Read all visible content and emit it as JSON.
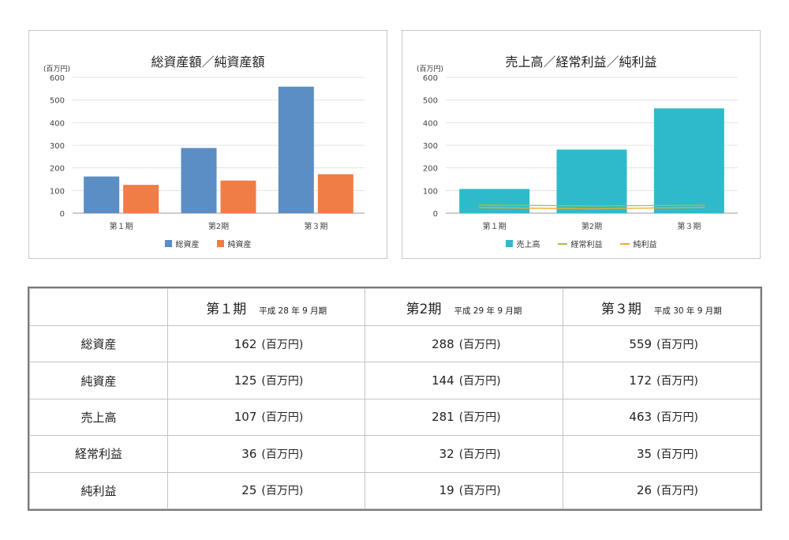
{
  "chart_data": [
    {
      "type": "bar",
      "title": "総資産額／純資産額",
      "unit_label": "(百万円)",
      "categories": [
        "第１期",
        "第2期",
        "第３期"
      ],
      "ylim": [
        0,
        600
      ],
      "yticks": [
        0,
        100,
        200,
        300,
        400,
        500,
        600
      ],
      "grid": true,
      "legend_position": "bottom",
      "series": [
        {
          "name": "総資産",
          "type": "bar",
          "color": "#5b8ec4",
          "values": [
            162,
            288,
            559
          ]
        },
        {
          "name": "純資産",
          "type": "bar",
          "color": "#ef7d45",
          "values": [
            125,
            144,
            172
          ]
        }
      ]
    },
    {
      "type": "bar",
      "title": "売上高／経常利益／純利益",
      "unit_label": "(百万円)",
      "categories": [
        "第１期",
        "第2期",
        "第３期"
      ],
      "ylim": [
        0,
        600
      ],
      "yticks": [
        0,
        100,
        200,
        300,
        400,
        500,
        600
      ],
      "grid": true,
      "legend_position": "bottom",
      "series": [
        {
          "name": "売上高",
          "type": "bar",
          "color": "#2ebacb",
          "values": [
            107,
            281,
            463
          ]
        },
        {
          "name": "経常利益",
          "type": "line",
          "color": "#9cc53f",
          "values": [
            36,
            32,
            35
          ]
        },
        {
          "name": "純利益",
          "type": "line",
          "color": "#f2a72a",
          "values": [
            25,
            19,
            26
          ]
        }
      ]
    }
  ],
  "table": {
    "unit": "(百万円)",
    "columns": [
      {
        "period": "第１期",
        "date": "平成 28 年 9 月期"
      },
      {
        "period": "第2期",
        "date": "平成 29 年 9 月期"
      },
      {
        "period": "第３期",
        "date": "平成 30 年 9 月期"
      }
    ],
    "rows": [
      {
        "label": "総資産",
        "values": [
          "162",
          "288",
          "559"
        ]
      },
      {
        "label": "純資産",
        "values": [
          "125",
          "144",
          "172"
        ]
      },
      {
        "label": "売上高",
        "values": [
          "107",
          "281",
          "463"
        ]
      },
      {
        "label": "経常利益",
        "values": [
          "36",
          "32",
          "35"
        ]
      },
      {
        "label": "純利益",
        "values": [
          "25",
          "19",
          "26"
        ]
      }
    ]
  }
}
